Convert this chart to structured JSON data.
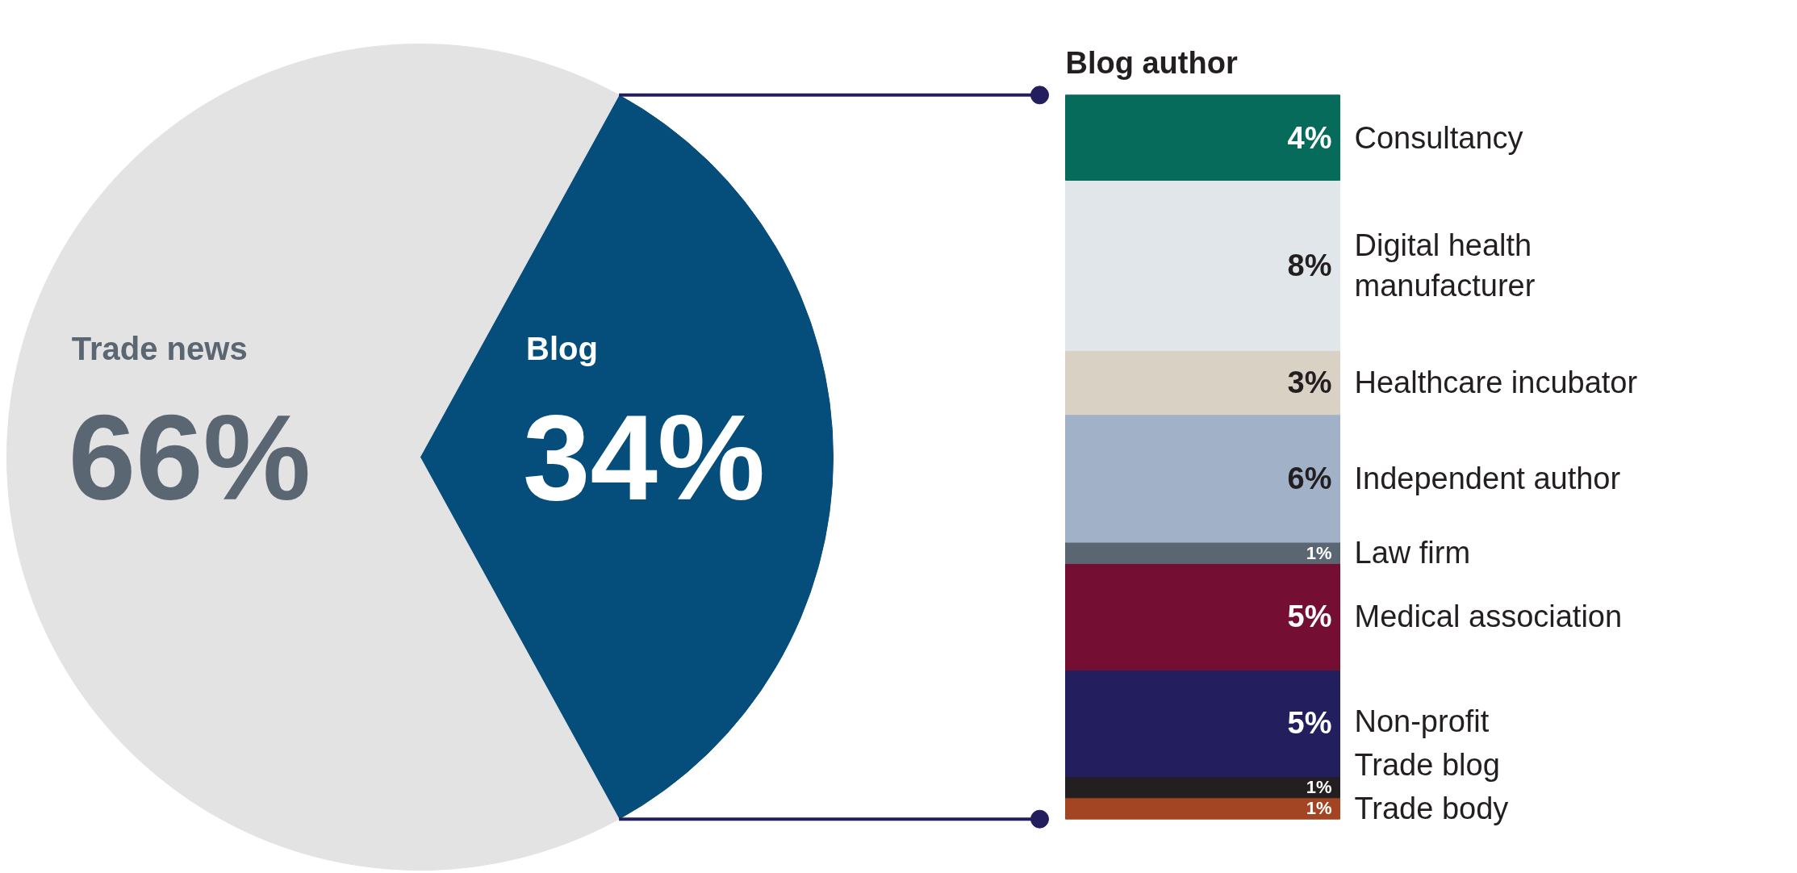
{
  "chart_data": [
    {
      "type": "pie",
      "categories": [
        "Trade news",
        "Blog"
      ],
      "values": [
        66,
        34
      ],
      "value_labels": [
        "66%",
        "34%"
      ],
      "colors": [
        "#e3e3e3",
        "#054d7b"
      ]
    },
    {
      "type": "bar",
      "title": "Blog author",
      "stacked": true,
      "categories": [
        null
      ],
      "series": [
        {
          "name": "Trade body",
          "color": "#a34522",
          "values": [
            1
          ],
          "value_labels": [
            "1%"
          ]
        },
        {
          "name": "Trade blog",
          "color": "#231f20",
          "values": [
            1
          ],
          "value_labels": [
            "1%"
          ]
        },
        {
          "name": "Non-profit",
          "color": "#231f5e",
          "values": [
            5
          ],
          "value_labels": [
            "5%"
          ]
        },
        {
          "name": "Medical association",
          "color": "#740f33",
          "values": [
            5
          ],
          "value_labels": [
            "5%"
          ]
        },
        {
          "name": "Law firm",
          "color": "#5b6673",
          "values": [
            1
          ],
          "value_labels": [
            "1%"
          ]
        },
        {
          "name": "Independent author",
          "color": "#a1b1c8",
          "values": [
            6
          ],
          "value_labels": [
            "6%"
          ]
        },
        {
          "name": "Healthcare incubator",
          "color": "#d9d2c4",
          "values": [
            3
          ],
          "value_labels": [
            "3%"
          ]
        },
        {
          "name": "Digital health manufacturer",
          "color": "#e0e6e9",
          "values": [
            8
          ],
          "value_labels": [
            "8%"
          ]
        },
        {
          "name": "Consultancy",
          "color": "#066b5a",
          "values": [
            4
          ],
          "value_labels": [
            "4%"
          ]
        }
      ]
    }
  ]
}
